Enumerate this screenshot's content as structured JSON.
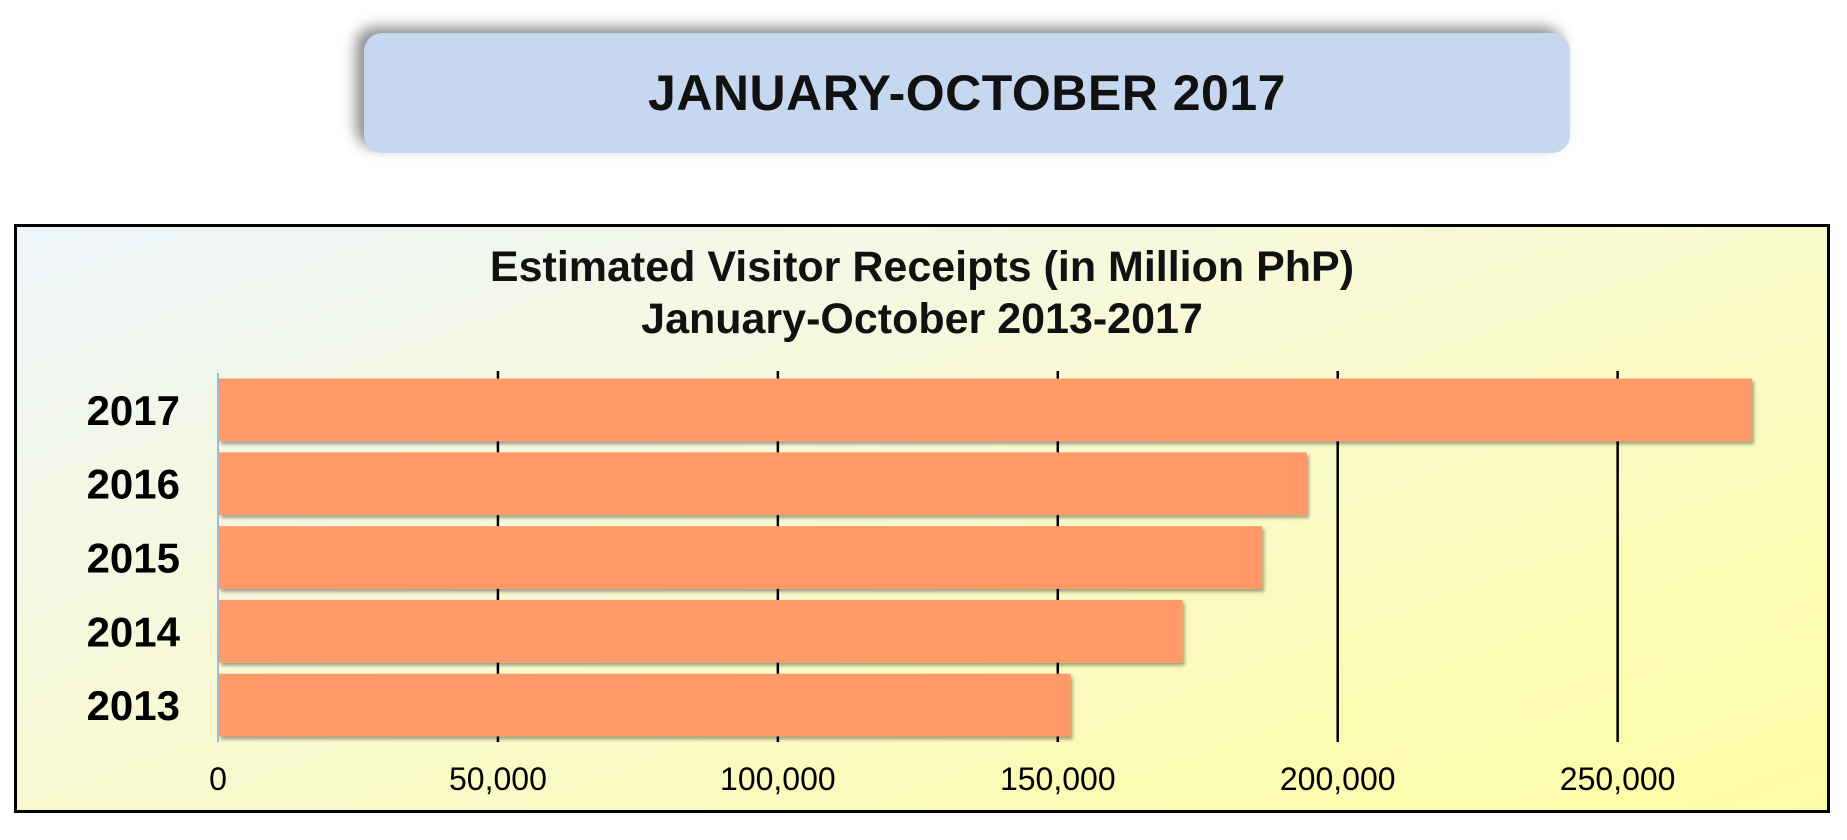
{
  "banner": {
    "title": "JANUARY-OCTOBER 2017"
  },
  "colors": {
    "banner_bg": "#c6d8f0",
    "bar_fill": "#fd9a67",
    "gridline": "#000000"
  },
  "chart_data": {
    "type": "bar",
    "orientation": "horizontal",
    "title": "Estimated Visitor Receipts (in Million PhP)",
    "subtitle": "January-October 2013-2017",
    "categories": [
      "2017",
      "2016",
      "2015",
      "2014",
      "2013"
    ],
    "values": [
      274000,
      194500,
      186500,
      172300,
      152300
    ],
    "xlim": [
      0,
      274000
    ],
    "xticks": [
      0,
      50000,
      100000,
      150000,
      200000,
      250000
    ],
    "xtick_labels": [
      "0",
      "50,000",
      "100,000",
      "150,000",
      "200,000",
      "250,000"
    ],
    "grid": true,
    "legend": "none"
  }
}
